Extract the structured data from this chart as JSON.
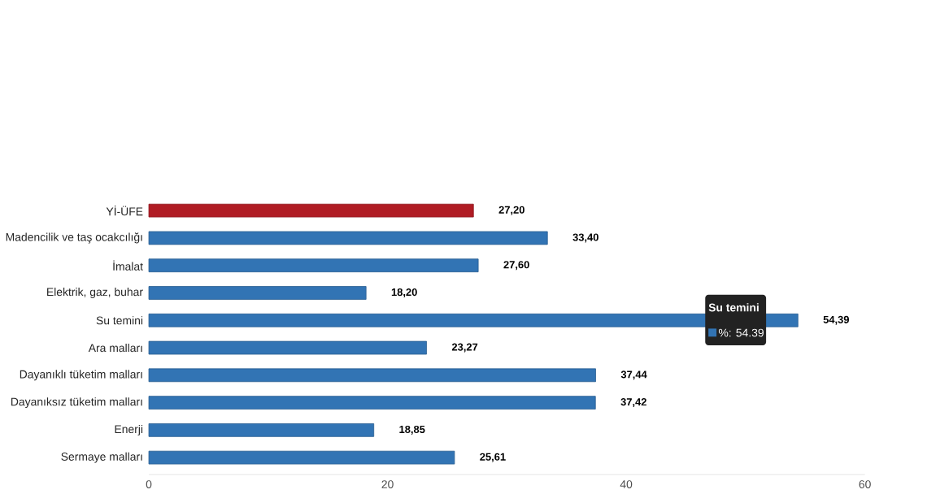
{
  "chart_data": {
    "type": "bar",
    "orientation": "horizontal",
    "categories": [
      "Yİ-ÜFE",
      "Madencilik ve taş ocakcılığı",
      "İmalat",
      "Elektrik, gaz, buhar",
      "Su temini",
      "Ara malları",
      "Dayanıklı tüketim malları",
      "Dayanıksız tüketim malları",
      "Enerji",
      "Sermaye malları"
    ],
    "values": [
      27.2,
      33.4,
      27.6,
      18.2,
      54.39,
      23.27,
      37.44,
      37.42,
      18.85,
      25.61
    ],
    "value_labels": [
      "27,20",
      "33,40",
      "27,60",
      "18,20",
      "54,39",
      "23,27",
      "37,44",
      "37,42",
      "18,85",
      "25,61"
    ],
    "colors": [
      "#b01c24",
      "#3274b4",
      "#3274b4",
      "#3274b4",
      "#3274b4",
      "#3274b4",
      "#3274b4",
      "#3274b4",
      "#3274b4",
      "#3274b4"
    ],
    "xlim": [
      0,
      60
    ],
    "xticks": [
      0,
      20,
      40,
      60
    ],
    "grid": false,
    "annotations": [
      "Su temini",
      "%: 54.39"
    ]
  }
}
